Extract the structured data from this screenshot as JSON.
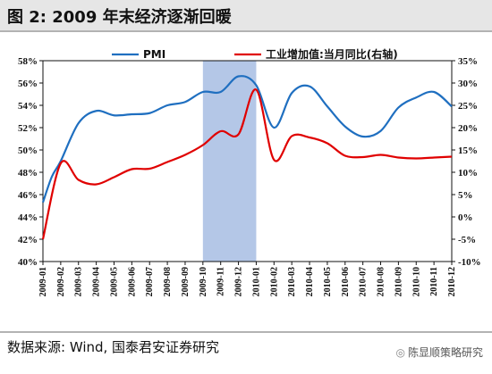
{
  "header": {
    "title": "图 2:  2009 年末经济逐渐回暖"
  },
  "footer": {
    "source": "数据来源:  Wind, 国泰君安证券研究"
  },
  "watermark": {
    "text": "陈显顺策略研究",
    "icon": "wechat-icon"
  },
  "chart_data": {
    "type": "line",
    "categories": [
      "2009-01",
      "2009-02",
      "2009-03",
      "2009-04",
      "2009-05",
      "2009-06",
      "2009-07",
      "2009-08",
      "2009-09",
      "2009-10",
      "2009-11",
      "2009-12",
      "2010-01",
      "2010-02",
      "2010-03",
      "2010-04",
      "2010-05",
      "2010-06",
      "2010-07",
      "2010-08",
      "2010-09",
      "2010-10",
      "2010-11",
      "2010-12"
    ],
    "y_left": {
      "ylim": [
        40,
        58
      ],
      "ticks": [
        "40%",
        "42%",
        "44%",
        "46%",
        "48%",
        "50%",
        "52%",
        "54%",
        "56%",
        "58%"
      ]
    },
    "y_right": {
      "ylim": [
        -10,
        35
      ],
      "ticks": [
        "-10%",
        "-5%",
        "0%",
        "5%",
        "10%",
        "15%",
        "20%",
        "25%",
        "30%",
        "35%"
      ]
    },
    "shaded_region": {
      "from": "2009-10",
      "to": "2010-01",
      "color": "#b4c7e7"
    },
    "series": [
      {
        "name": "PMI",
        "axis": "left",
        "color": "#1f6fc0",
        "x": [
          "2009-01",
          "2009-01.5",
          "2009-02",
          "2009-03",
          "2009-04",
          "2009-05",
          "2009-06",
          "2009-07",
          "2009-08",
          "2009-09",
          "2009-10",
          "2009-11",
          "2009-12",
          "2010-01",
          "2010-02",
          "2010-03",
          "2010-04",
          "2010-05",
          "2010-06",
          "2010-07",
          "2010-08",
          "2010-09",
          "2010-10",
          "2010-11",
          "2010-12"
        ],
        "values": [
          45.3,
          47.6,
          49.0,
          52.4,
          53.5,
          53.1,
          53.2,
          53.3,
          54.0,
          54.3,
          55.2,
          55.2,
          56.6,
          55.8,
          52.0,
          55.1,
          55.7,
          53.9,
          52.1,
          51.2,
          51.7,
          53.8,
          54.7,
          55.2,
          53.9
        ]
      },
      {
        "name": "工业增加值:当月同比(右轴)",
        "axis": "right",
        "color": "#e00000",
        "values": [
          -5.0,
          12.0,
          8.3,
          7.3,
          8.9,
          10.7,
          10.8,
          12.3,
          13.9,
          16.1,
          19.2,
          18.5,
          28.5,
          12.8,
          18.1,
          17.8,
          16.5,
          13.7,
          13.4,
          13.9,
          13.3,
          13.1,
          13.3,
          13.5
        ]
      }
    ],
    "legend": [
      "PMI",
      "工业增加值:当月同比(右轴)"
    ],
    "legend_position": "top"
  }
}
